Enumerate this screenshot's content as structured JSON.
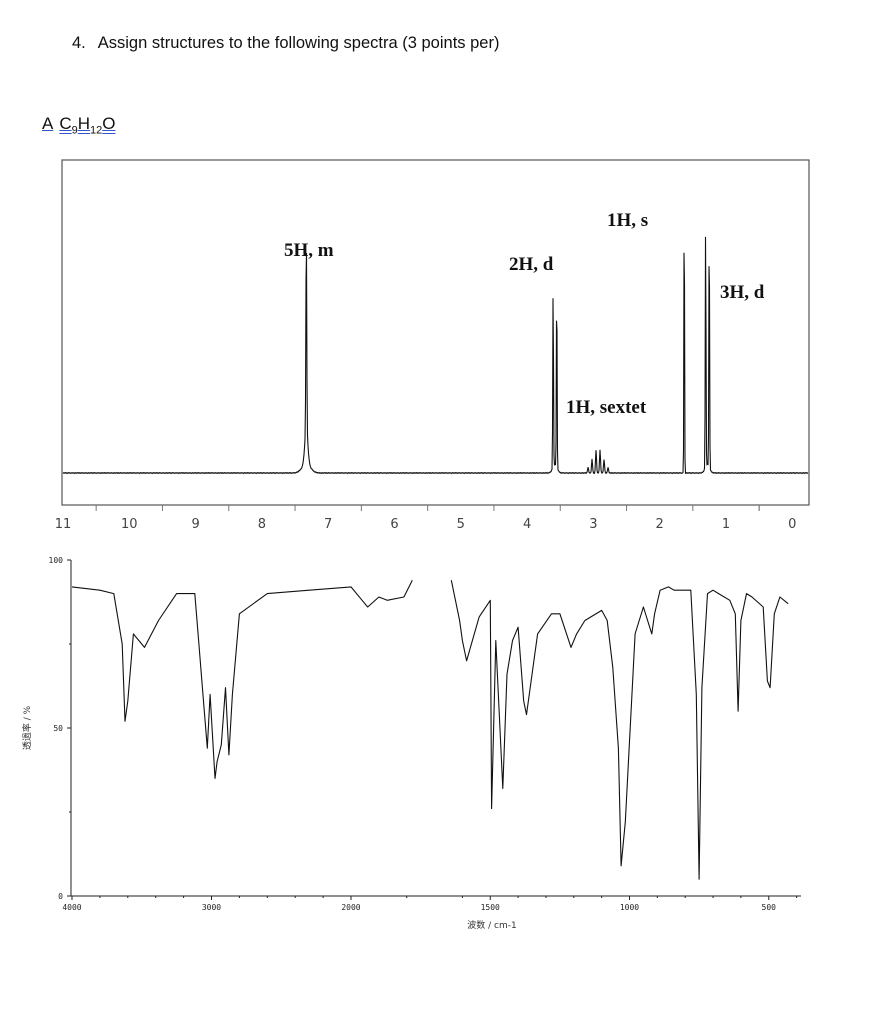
{
  "question": {
    "number": "4.",
    "text": "Assign structures to the following spectra (3 points per)"
  },
  "compound": {
    "letter": "A",
    "formula_c": "C",
    "formula_c_sub": "9",
    "formula_h": "H",
    "formula_h_sub": "12",
    "formula_o": "O"
  },
  "chart_data": [
    {
      "type": "line",
      "subtype": "1H NMR spectrum",
      "title": "",
      "xlabel": "",
      "ylabel": "",
      "x_reversed": true,
      "xlim": [
        11,
        0
      ],
      "x_ticks": [
        "11",
        "10",
        "9",
        "8",
        "7",
        "6",
        "5",
        "4",
        "3",
        "2",
        "1",
        "0"
      ],
      "grid": false,
      "peaks": [
        {
          "ppm": 7.3,
          "height": 0.68,
          "label": "5H, m"
        },
        {
          "ppm": 3.55,
          "height": 0.63,
          "label": "2H, d"
        },
        {
          "ppm": 2.9,
          "height": 0.08,
          "label": "1H, sextet"
        },
        {
          "ppm": 1.6,
          "height": 0.97,
          "label": "1H, s"
        },
        {
          "ppm": 1.25,
          "height": 0.85,
          "label": "3H, d"
        }
      ]
    },
    {
      "type": "line",
      "subtype": "IR spectrum",
      "title": "",
      "xlabel": "波数 / cm-1",
      "ylabel": "透過率 / %",
      "x_reversed": true,
      "xlim": [
        4000,
        400
      ],
      "ylim": [
        0,
        100
      ],
      "x_ticks": [
        "4000",
        "3000",
        "2000",
        "1500",
        "1000",
        "500"
      ],
      "y_ticks": [
        "100",
        "50",
        "0"
      ],
      "grid": false,
      "points": [
        [
          4000,
          92
        ],
        [
          3800,
          91
        ],
        [
          3700,
          90
        ],
        [
          3640,
          75
        ],
        [
          3620,
          52
        ],
        [
          3600,
          58
        ],
        [
          3560,
          78
        ],
        [
          3480,
          74
        ],
        [
          3380,
          82
        ],
        [
          3250,
          90
        ],
        [
          3120,
          90
        ],
        [
          3090,
          75
        ],
        [
          3065,
          62
        ],
        [
          3030,
          44
        ],
        [
          3010,
          60
        ],
        [
          2975,
          35
        ],
        [
          2960,
          40
        ],
        [
          2930,
          45
        ],
        [
          2900,
          62
        ],
        [
          2875,
          42
        ],
        [
          2850,
          60
        ],
        [
          2800,
          84
        ],
        [
          2600,
          90
        ],
        [
          2300,
          91
        ],
        [
          2000,
          92
        ],
        [
          1960,
          88
        ],
        [
          1940,
          86
        ],
        [
          1900,
          89
        ],
        [
          1870,
          88
        ],
        [
          1810,
          89
        ],
        [
          1780,
          94
        ],
        [
          1640,
          94
        ],
        [
          1610,
          82
        ],
        [
          1600,
          76
        ],
        [
          1585,
          70
        ],
        [
          1540,
          83
        ],
        [
          1500,
          88
        ],
        [
          1495,
          26
        ],
        [
          1480,
          76
        ],
        [
          1455,
          32
        ],
        [
          1440,
          66
        ],
        [
          1420,
          76
        ],
        [
          1400,
          80
        ],
        [
          1380,
          58
        ],
        [
          1370,
          54
        ],
        [
          1330,
          78
        ],
        [
          1280,
          84
        ],
        [
          1250,
          84
        ],
        [
          1210,
          74
        ],
        [
          1190,
          78
        ],
        [
          1160,
          82
        ],
        [
          1100,
          85
        ],
        [
          1080,
          82
        ],
        [
          1060,
          68
        ],
        [
          1040,
          44
        ],
        [
          1030,
          9
        ],
        [
          1015,
          22
        ],
        [
          990,
          62
        ],
        [
          980,
          78
        ],
        [
          950,
          86
        ],
        [
          920,
          78
        ],
        [
          910,
          84
        ],
        [
          890,
          91
        ],
        [
          860,
          92
        ],
        [
          840,
          91
        ],
        [
          780,
          91
        ],
        [
          760,
          60
        ],
        [
          750,
          5
        ],
        [
          740,
          62
        ],
        [
          720,
          90
        ],
        [
          700,
          91
        ],
        [
          680,
          90
        ],
        [
          640,
          88
        ],
        [
          620,
          84
        ],
        [
          610,
          55
        ],
        [
          600,
          82
        ],
        [
          580,
          90
        ],
        [
          560,
          89
        ],
        [
          520,
          86
        ],
        [
          505,
          64
        ],
        [
          495,
          62
        ],
        [
          480,
          84
        ],
        [
          460,
          89
        ],
        [
          430,
          87
        ]
      ]
    }
  ]
}
